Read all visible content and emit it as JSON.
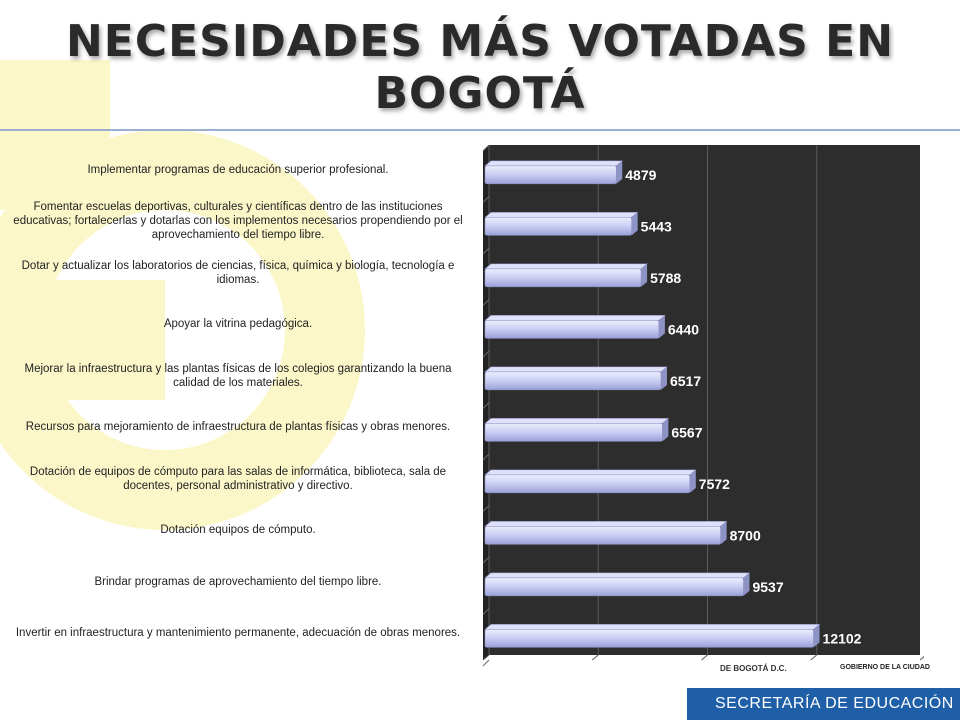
{
  "title": "NECESIDADES MÁS VOTADAS EN BOGOTÁ",
  "footer": {
    "left_text": "DE BOGOTÁ D.C.",
    "right_text": "GOBIERNO DE LA CIUDAD",
    "brand": "SECRETARÍA DE EDUCACIÓN"
  },
  "colors": {
    "bar_fill": "#c9cdf2",
    "bar_edge": "#8e93c6",
    "plot_bg": "#2d2d2d",
    "brand": "#1f5fa8",
    "logo": "#fbf7c9"
  },
  "chart_data": {
    "type": "bar",
    "orientation": "horizontal",
    "categories": [
      "Implementar programas de educación superior profesional.",
      "Fomentar escuelas deportivas, culturales y científicas dentro de las instituciones educativas; fortalecerlas y dotarlas con los implementos necesarios propendiendo por el aprovechamiento del tiempo libre.",
      "Dotar y actualizar los laboratorios de ciencias, física, química y biología, tecnología e idiomas.",
      "Apoyar la vitrina pedagógica.",
      "Mejorar la infraestructura y las plantas físicas de los colegios garantizando la buena calidad de los materiales.",
      "Recursos para mejoramiento de infraestructura de plantas físicas y obras menores.",
      "Dotación de equipos de cómputo para las salas de informática, biblioteca, sala de docentes, personal administrativo y directivo.",
      "Dotación equipos de cómputo.",
      "Brindar programas de aprovechamiento del tiempo libre.",
      "Invertir en infraestructura y mantenimiento permanente, adecuación de obras menores."
    ],
    "values": [
      4879,
      5443,
      5788,
      6440,
      6517,
      6567,
      7572,
      8700,
      9537,
      12102
    ],
    "value_labels": [
      "4879",
      "5443",
      "5788",
      "6440",
      "6517",
      "6567",
      "7572",
      "8700",
      "9537",
      "12102"
    ],
    "xlim": [
      0,
      16000
    ],
    "grid": true,
    "data_labels": true,
    "style": "3d-cylinder"
  }
}
